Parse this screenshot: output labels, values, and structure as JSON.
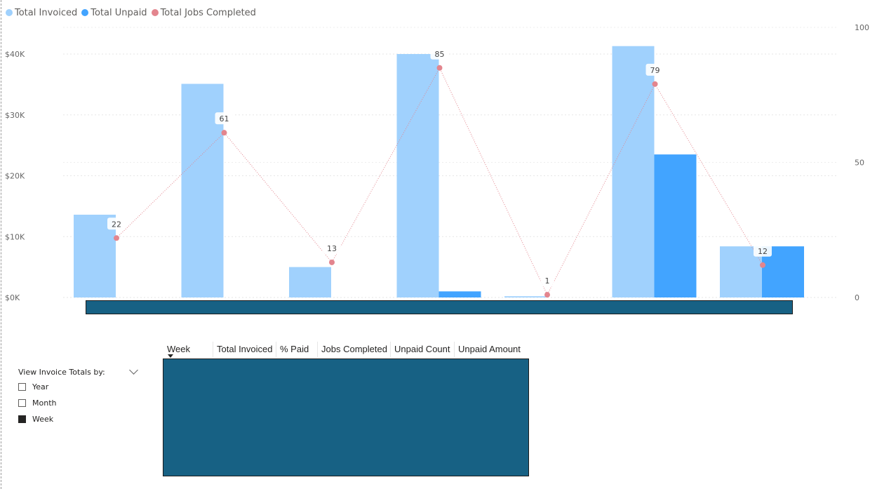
{
  "chart_data": {
    "type": "bar",
    "series": [
      {
        "name": "Total Invoiced",
        "color": "#a0d1fd",
        "values": [
          13600,
          35100,
          5000,
          40000,
          200,
          41300,
          8400
        ]
      },
      {
        "name": "Total Unpaid",
        "color": "#42a4ff",
        "values": [
          0,
          0,
          0,
          1000,
          0,
          23500,
          8400
        ]
      },
      {
        "name": "Total Jobs Completed",
        "type": "line",
        "axis": "right",
        "color": "#e3858e",
        "values": [
          22,
          61,
          13,
          85,
          1,
          79,
          12
        ]
      }
    ],
    "y_left": {
      "ticks": [
        "$0K",
        "$10K",
        "$20K",
        "$30K",
        "$40K"
      ],
      "tick_values": [
        0,
        10000,
        20000,
        30000,
        40000
      ],
      "range": [
        0,
        40000
      ]
    },
    "y_right": {
      "ticks": [
        "0",
        "50",
        "100"
      ],
      "tick_values": [
        0,
        50,
        100
      ],
      "range": [
        0,
        100
      ]
    },
    "data_labels": [
      "22",
      "61",
      "13",
      "85",
      "1",
      "79",
      "12"
    ],
    "grid": true,
    "legend_position": "top-left"
  },
  "legend": {
    "items": [
      {
        "label": "Total Invoiced",
        "color": "#a0d1fd"
      },
      {
        "label": "Total Unpaid",
        "color": "#42a4ff"
      },
      {
        "label": "Total Jobs Completed",
        "color": "#e3858e"
      }
    ]
  },
  "slicer": {
    "title": "View Invoice Totals by:",
    "options": [
      {
        "label": "Year",
        "checked": false
      },
      {
        "label": "Month",
        "checked": false
      },
      {
        "label": "Week",
        "checked": true
      }
    ]
  },
  "table": {
    "columns": [
      "Week",
      "Total Invoiced",
      "% Paid",
      "Jobs Completed",
      "Unpaid Count",
      "Unpaid Amount"
    ]
  }
}
